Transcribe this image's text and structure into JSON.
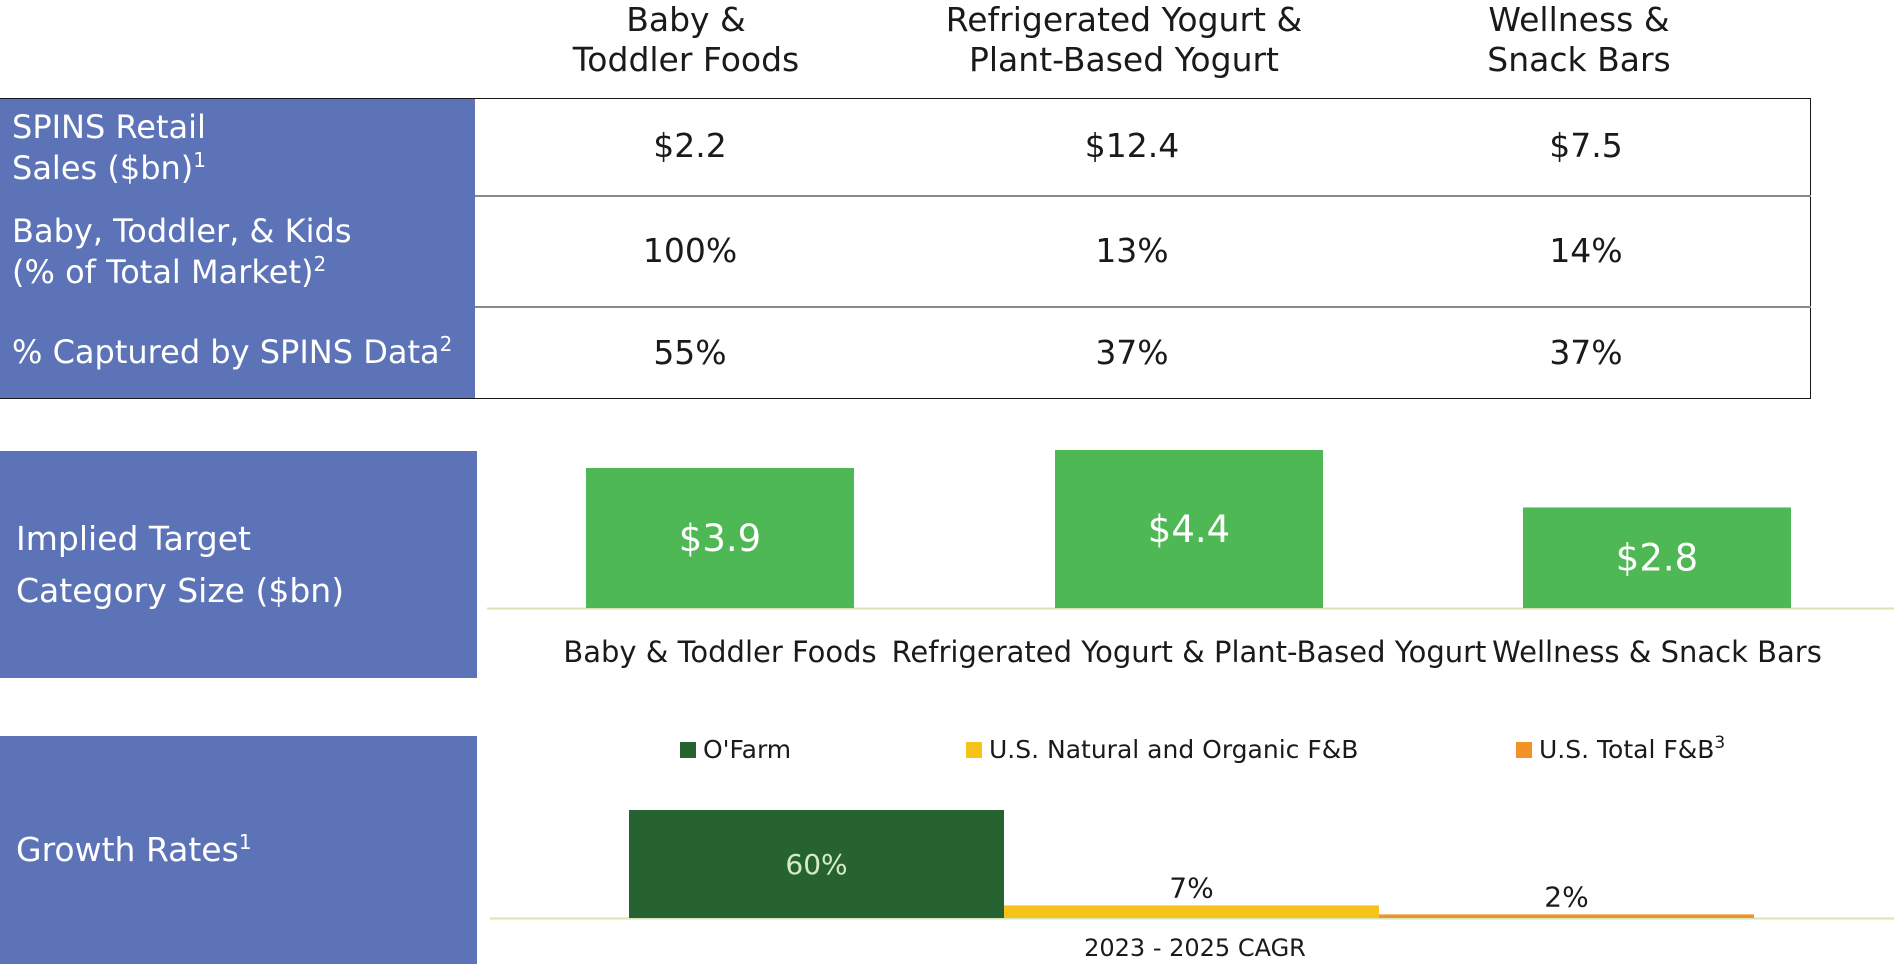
{
  "table": {
    "columns": [
      {
        "line1": "Baby &",
        "line2": "Toddler Foods"
      },
      {
        "line1": "Refrigerated Yogurt &",
        "line2": "Plant-Based Yogurt"
      },
      {
        "line1": "Wellness &",
        "line2": "Snack Bars"
      }
    ],
    "rows": [
      {
        "label_line1": "SPINS Retail",
        "label_line2": "Sales ($bn)",
        "footnote": "1",
        "values": [
          "$2.2",
          "$12.4",
          "$7.5"
        ]
      },
      {
        "label_line1": "Baby, Toddler, & Kids",
        "label_line2": "(% of Total Market)",
        "footnote": "2",
        "values": [
          "100%",
          "13%",
          "14%"
        ]
      },
      {
        "label_line1": "% Captured by SPINS Data",
        "label_line2": "",
        "footnote": "2",
        "values": [
          "55%",
          "37%",
          "37%"
        ]
      }
    ]
  },
  "implied_panel": {
    "line1": "Implied Target",
    "line2": "Category Size ($bn)"
  },
  "growth_panel": {
    "label": "Growth Rates",
    "footnote": "1"
  },
  "colors": {
    "panel_blue": "#5c73b8",
    "bar_green": "#4db854",
    "ofarm_green": "#276330",
    "natural_yellow": "#f5c319",
    "total_orange": "#f39229",
    "axis_line": "#d6e6b8"
  },
  "chart_data": [
    {
      "type": "bar",
      "categories": [
        "Baby & Toddler Foods",
        "Refrigerated Yogurt & Plant-Based Yogurt",
        "Wellness & Snack Bars"
      ],
      "values": [
        3.9,
        4.4,
        2.8
      ],
      "data_labels": [
        "$3.9",
        "$4.4",
        "$2.8"
      ],
      "title": "",
      "xlabel": "",
      "ylabel": "",
      "ylim": [
        0,
        4.4
      ],
      "grid": false
    },
    {
      "type": "bar",
      "categories": [
        "2023 - 2025 CAGR"
      ],
      "series": [
        {
          "name": "O'Farm",
          "values": [
            60
          ],
          "label": "60%",
          "color": "#276330"
        },
        {
          "name": "U.S. Natural and Organic F&B",
          "values": [
            7
          ],
          "label": "7%",
          "color": "#f5c319"
        },
        {
          "name": "U.S. Total F&B",
          "values": [
            2
          ],
          "label": "2%",
          "color": "#f39229",
          "footnote": "3"
        }
      ],
      "xlabel": "2023 - 2025 CAGR",
      "ylabel": "",
      "ylim": [
        0,
        60
      ],
      "legend": "top",
      "grid": false
    }
  ]
}
